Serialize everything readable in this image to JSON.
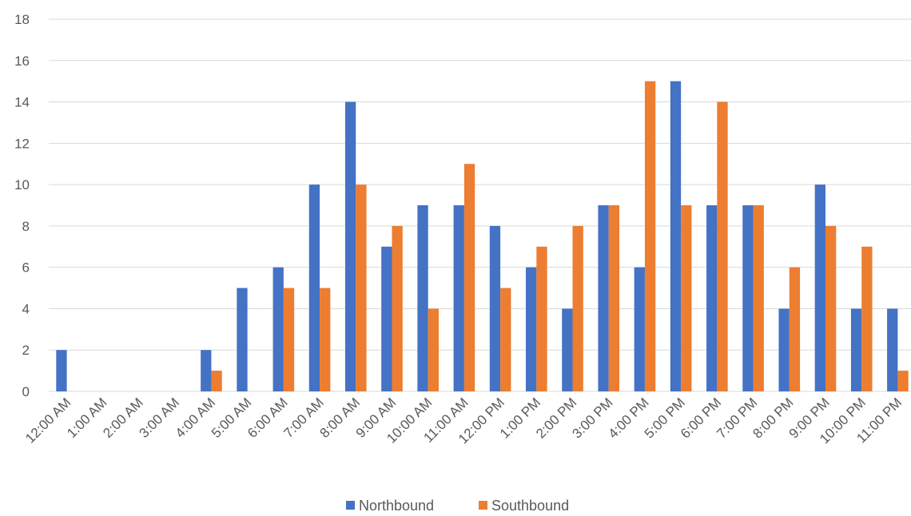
{
  "chart_data": {
    "type": "bar",
    "categories": [
      "12:00 AM",
      "1:00 AM",
      "2:00 AM",
      "3:00 AM",
      "4:00 AM",
      "5:00 AM",
      "6:00 AM",
      "7:00 AM",
      "8:00 AM",
      "9:00 AM",
      "10:00 AM",
      "11:00 AM",
      "12:00 PM",
      "1:00 PM",
      "2:00 PM",
      "3:00 PM",
      "4:00 PM",
      "5:00 PM",
      "6:00 PM",
      "7:00 PM",
      "8:00 PM",
      "9:00 PM",
      "10:00 PM",
      "11:00 PM"
    ],
    "series": [
      {
        "name": "Northbound",
        "color": "#4472C4",
        "values": [
          2,
          0,
          0,
          0,
          2,
          5,
          6,
          10,
          14,
          7,
          9,
          9,
          8,
          6,
          4,
          9,
          6,
          15,
          9,
          9,
          4,
          10,
          4,
          4
        ]
      },
      {
        "name": "Southbound",
        "color": "#ED7D31",
        "values": [
          0,
          0,
          0,
          0,
          1,
          0,
          5,
          5,
          10,
          8,
          4,
          11,
          5,
          7,
          8,
          9,
          15,
          9,
          14,
          9,
          6,
          8,
          7,
          1
        ]
      }
    ],
    "yticks": [
      "0",
      "2",
      "4",
      "6",
      "8",
      "10",
      "12",
      "14",
      "16",
      "18"
    ],
    "ylim": [
      0,
      18
    ],
    "grid": true,
    "legend_position": "bottom"
  }
}
